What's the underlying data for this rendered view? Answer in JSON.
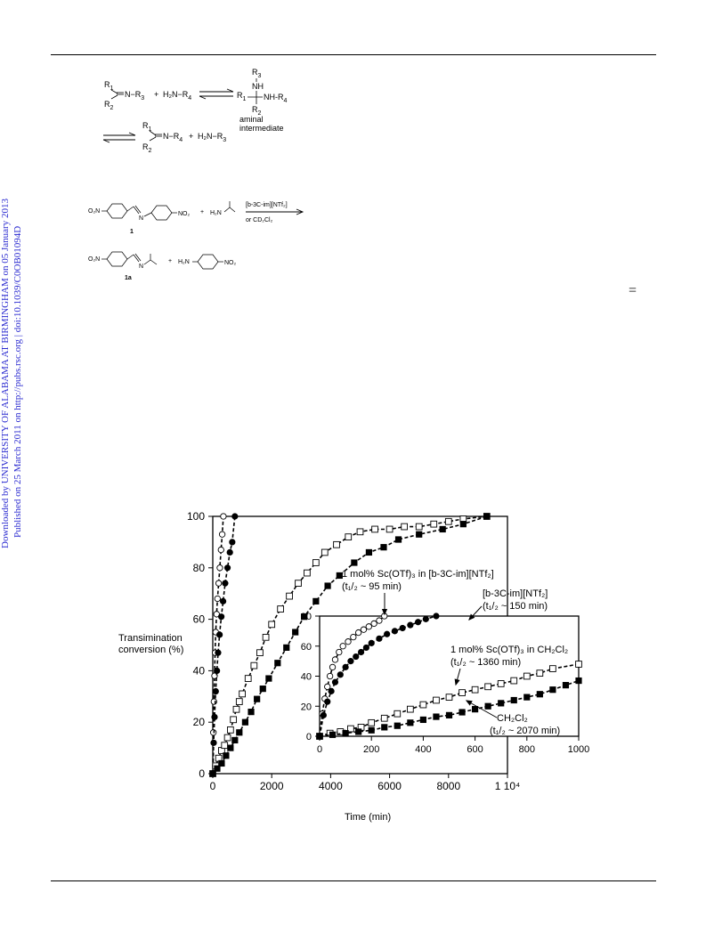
{
  "margin": {
    "line1": "Downloaded by UNIVERSITY OF ALABAMA AT BIRMINGHAM on 05 January 2013",
    "line2": "Published on 25 March 2011 on http://pubs.rsc.org | doi:10.1039/C0OB01094D"
  },
  "scheme1": {
    "r1": "R",
    "r1_sub": "1",
    "r2": "R",
    "r2_sub": "2",
    "n_r3": "N−R",
    "n_r3_sub": "3",
    "plus": "+",
    "amine_r4": "H₂N−R",
    "amine_r4_sub": "4",
    "aminal_r3": "R",
    "aminal_r3_sub": "3",
    "aminal_nh": "NH",
    "aminal_r1": "R",
    "aminal_r1_sub": "1",
    "aminal_nhr4": "NH-R",
    "aminal_nhr4_sub": "4",
    "aminal_r2": "R",
    "aminal_r2_sub": "2",
    "aminal_label1": "aminal",
    "aminal_label2": "intermediate",
    "prod_r1": "R",
    "prod_r1_sub": "1",
    "prod_r2": "R",
    "prod_r2_sub": "2",
    "prod_nr4": "N−R",
    "prod_nr4_sub": "4",
    "prod_amine": "H₂N−R",
    "prod_amine_sub": "3"
  },
  "scheme2": {
    "o2n": "O₂N",
    "no2": "NO₂",
    "n": "N",
    "plus": "+",
    "h2n": "H₂N",
    "cond1": "[b-3C-im][NTf₂]",
    "cond2": "or CD₂Cl₂",
    "label1": "1",
    "o2n_b": "O₂N",
    "n_b": "N",
    "plus_b": "+",
    "h2n_b": "H₂N",
    "no2_b": "NO₂",
    "label1a": "1a"
  },
  "equals_sign": "=",
  "chart_data": [
    {
      "type": "scatter",
      "ylabel": "Transimination\nconversion (%)",
      "xlabel": "Time (min)",
      "xlim": [
        0,
        10000
      ],
      "ylim": [
        0,
        100
      ],
      "xticks": [
        "0",
        "2000",
        "4000",
        "6000",
        "8000",
        "1 10⁴"
      ],
      "yticks": [
        "0",
        "20",
        "40",
        "60",
        "80",
        "100"
      ],
      "series": [
        {
          "name": "1 mol% Sc(OTf)₃ in [b-3C-im][NTf₂]",
          "marker": "open-circle",
          "x": [
            0,
            20,
            40,
            60,
            80,
            100,
            130,
            160,
            200,
            240,
            280,
            320,
            360
          ],
          "y": [
            0,
            16,
            28,
            38,
            47,
            55,
            62,
            68,
            74,
            80,
            87,
            93,
            100
          ]
        },
        {
          "name": "[b-3C-im][NTf₂]",
          "marker": "filled-circle",
          "x": [
            0,
            30,
            60,
            100,
            140,
            180,
            230,
            290,
            350,
            420,
            500,
            580,
            660,
            750
          ],
          "y": [
            0,
            12,
            22,
            32,
            40,
            47,
            54,
            61,
            67,
            74,
            80,
            86,
            90,
            100
          ]
        },
        {
          "name": "1 mol% Sc(OTf)₃ in CH₂Cl₂",
          "marker": "open-square",
          "x": [
            0,
            100,
            200,
            300,
            400,
            500,
            600,
            700,
            800,
            900,
            1000,
            1200,
            1400,
            1600,
            1800,
            2000,
            2300,
            2600,
            2900,
            3200,
            3500,
            3800,
            4200,
            4600,
            5000,
            5500,
            6000,
            6500,
            7000,
            7500,
            8000,
            8500,
            9300
          ],
          "y": [
            0,
            3,
            6,
            9,
            11,
            14,
            17,
            21,
            25,
            28,
            31,
            37,
            42,
            47,
            53,
            58,
            64,
            69,
            74,
            78,
            82,
            86,
            89,
            92,
            94,
            95,
            95,
            96,
            96,
            97,
            98,
            99,
            100
          ]
        },
        {
          "name": "CH₂Cl₂",
          "marker": "filled-square",
          "x": [
            0,
            150,
            300,
            450,
            600,
            750,
            900,
            1100,
            1300,
            1500,
            1700,
            1900,
            2200,
            2500,
            2800,
            3100,
            3500,
            3900,
            4300,
            4800,
            5300,
            5800,
            6300,
            7000,
            7800,
            8500,
            9300
          ],
          "y": [
            0,
            2,
            4,
            7,
            10,
            13,
            16,
            20,
            24,
            29,
            33,
            37,
            43,
            49,
            55,
            61,
            67,
            73,
            77,
            82,
            86,
            88,
            91,
            93,
            95,
            97,
            100
          ]
        }
      ]
    },
    {
      "type": "scatter",
      "xlim": [
        0,
        1000
      ],
      "ylim": [
        0,
        80
      ],
      "xticks": [
        "0",
        "200",
        "400",
        "600",
        "800",
        "1000"
      ],
      "yticks": [
        "0",
        "20",
        "40",
        "60",
        "80"
      ],
      "annotations": [
        {
          "text": "1 mol% Sc(OTf)₃ in [b-3C-im][NTf₂]"
        },
        {
          "text": "(t₁/₂ ~ 95 min)"
        },
        {
          "text": "[b-3C-im][NTf₂]"
        },
        {
          "text": "(t₁/₂ ~ 150 min)"
        },
        {
          "text": "1 mol% Sc(OTf)₃ in CH₂Cl₂"
        },
        {
          "text": "(t₁/₂ ~ 1360 min)"
        },
        {
          "text": "CH₂Cl₂"
        },
        {
          "text": "(t₁/₂ ~ 2070 min)"
        }
      ],
      "series": [
        {
          "name": "1 mol% Sc(OTf)₃ in [b-3C-im][NTf₂]",
          "marker": "open-circle",
          "x": [
            0,
            10,
            20,
            30,
            40,
            50,
            60,
            75,
            90,
            110,
            130,
            150,
            170,
            190,
            210,
            230,
            250
          ],
          "y": [
            0,
            15,
            25,
            33,
            40,
            46,
            51,
            56,
            60,
            63,
            66,
            69,
            71,
            73,
            75,
            77,
            80
          ]
        },
        {
          "name": "[b-3C-im][NTf₂]",
          "marker": "filled-circle",
          "x": [
            0,
            15,
            30,
            45,
            60,
            80,
            100,
            120,
            140,
            160,
            180,
            200,
            230,
            260,
            290,
            320,
            350,
            380,
            410,
            450
          ],
          "y": [
            0,
            14,
            23,
            30,
            36,
            41,
            46,
            50,
            53,
            56,
            59,
            62,
            65,
            68,
            70,
            72,
            74,
            76,
            78,
            80
          ]
        },
        {
          "name": "1 mol% Sc(OTf)₃ in CH₂Cl₂",
          "marker": "open-square",
          "x": [
            0,
            40,
            80,
            120,
            160,
            200,
            250,
            300,
            350,
            400,
            450,
            500,
            550,
            600,
            650,
            700,
            750,
            800,
            850,
            900,
            1000
          ],
          "y": [
            0,
            2,
            3,
            5,
            6,
            9,
            12,
            15,
            18,
            21,
            24,
            26,
            29,
            31,
            33,
            35,
            37,
            40,
            42,
            45,
            48
          ]
        },
        {
          "name": "CH₂Cl₂",
          "marker": "filled-square",
          "x": [
            0,
            50,
            100,
            150,
            200,
            250,
            300,
            350,
            400,
            450,
            500,
            550,
            600,
            650,
            700,
            750,
            800,
            850,
            900,
            950,
            1000
          ],
          "y": [
            0,
            1,
            2,
            3,
            4,
            6,
            7,
            9,
            11,
            13,
            14,
            16,
            18,
            20,
            22,
            24,
            26,
            28,
            31,
            34,
            37
          ]
        }
      ]
    }
  ]
}
